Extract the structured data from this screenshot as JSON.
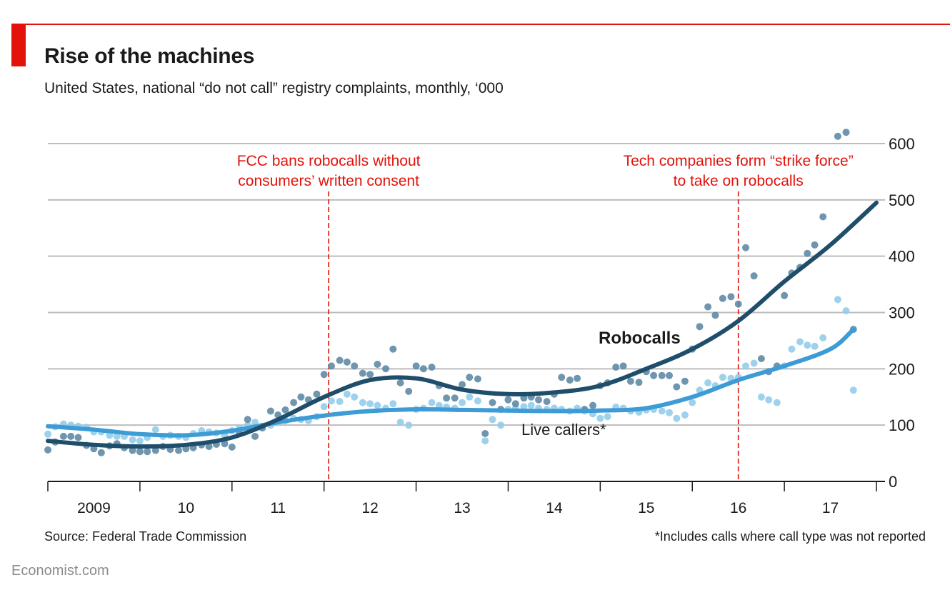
{
  "header": {
    "title": "Rise of the machines",
    "subtitle": "United States, national “do not call” registry complaints, monthly, ‘000"
  },
  "footer": {
    "source": "Source: Federal Trade Commission",
    "footnote": "*Includes calls where call type was not reported",
    "brand": "Economist.com"
  },
  "colors": {
    "accent": "#e3120b",
    "robocalls": "#1f4e6b",
    "robocalls_dots": "#5f8aa6",
    "live": "#3d9bd6",
    "live_dots": "#93cdea",
    "grid": "#bcbcbc",
    "axis": "#1a1a1a",
    "annotation": "#e3120b"
  },
  "chart_data": {
    "type": "line",
    "title": "Rise of the machines",
    "subtitle": "United States, national “do not call” registry complaints, monthly, ‘000",
    "xlim": [
      2009.0,
      2018.0
    ],
    "ylim": [
      0,
      600
    ],
    "y_ticks": [
      0,
      100,
      200,
      300,
      400,
      500,
      600
    ],
    "y_axis_side": "right",
    "x_ticks": [
      2009,
      2010,
      2011,
      2012,
      2013,
      2014,
      2015,
      2016,
      2017,
      2018
    ],
    "x_tick_labels": [
      {
        "x": 2009.5,
        "label": "2009"
      },
      {
        "x": 2010.5,
        "label": "10"
      },
      {
        "x": 2011.5,
        "label": "11"
      },
      {
        "x": 2012.5,
        "label": "12"
      },
      {
        "x": 2013.5,
        "label": "13"
      },
      {
        "x": 2014.5,
        "label": "14"
      },
      {
        "x": 2015.5,
        "label": "15"
      },
      {
        "x": 2016.5,
        "label": "16"
      },
      {
        "x": 2017.5,
        "label": "17"
      }
    ],
    "grid": true,
    "annotations": [
      {
        "x": 2012.05,
        "lines": [
          "FCC bans robocalls without",
          "consumers’ written consent"
        ]
      },
      {
        "x": 2016.5,
        "lines": [
          "Tech companies form “strike force”",
          "to take on robocalls"
        ]
      }
    ],
    "series": [
      {
        "name": "Robocalls",
        "label": "Robocalls",
        "trend": [
          [
            2009.0,
            72
          ],
          [
            2009.5,
            65
          ],
          [
            2010.0,
            62
          ],
          [
            2010.5,
            65
          ],
          [
            2011.0,
            78
          ],
          [
            2011.5,
            110
          ],
          [
            2012.0,
            150
          ],
          [
            2012.5,
            180
          ],
          [
            2013.0,
            183
          ],
          [
            2013.5,
            163
          ],
          [
            2014.0,
            155
          ],
          [
            2014.5,
            158
          ],
          [
            2015.0,
            170
          ],
          [
            2015.5,
            200
          ],
          [
            2016.0,
            235
          ],
          [
            2016.5,
            285
          ],
          [
            2017.0,
            355
          ],
          [
            2017.5,
            420
          ],
          [
            2018.0,
            495
          ]
        ],
        "points": [
          [
            2009.0,
            56
          ],
          [
            2009.08,
            70
          ],
          [
            2009.17,
            80
          ],
          [
            2009.25,
            80
          ],
          [
            2009.33,
            78
          ],
          [
            2009.42,
            64
          ],
          [
            2009.5,
            58
          ],
          [
            2009.58,
            51
          ],
          [
            2009.67,
            63
          ],
          [
            2009.75,
            67
          ],
          [
            2009.83,
            60
          ],
          [
            2009.92,
            55
          ],
          [
            2010.0,
            53
          ],
          [
            2010.08,
            53
          ],
          [
            2010.17,
            55
          ],
          [
            2010.25,
            62
          ],
          [
            2010.33,
            57
          ],
          [
            2010.42,
            55
          ],
          [
            2010.5,
            58
          ],
          [
            2010.58,
            60
          ],
          [
            2010.67,
            65
          ],
          [
            2010.75,
            62
          ],
          [
            2010.83,
            66
          ],
          [
            2010.92,
            67
          ],
          [
            2011.0,
            61
          ],
          [
            2011.08,
            85
          ],
          [
            2011.17,
            110
          ],
          [
            2011.25,
            80
          ],
          [
            2011.33,
            95
          ],
          [
            2011.42,
            125
          ],
          [
            2011.5,
            118
          ],
          [
            2011.58,
            127
          ],
          [
            2011.67,
            140
          ],
          [
            2011.75,
            150
          ],
          [
            2011.83,
            145
          ],
          [
            2011.92,
            155
          ],
          [
            2012.0,
            190
          ],
          [
            2012.08,
            205
          ],
          [
            2012.17,
            215
          ],
          [
            2012.25,
            212
          ],
          [
            2012.33,
            205
          ],
          [
            2012.42,
            192
          ],
          [
            2012.5,
            190
          ],
          [
            2012.58,
            208
          ],
          [
            2012.67,
            200
          ],
          [
            2012.75,
            235
          ],
          [
            2012.83,
            175
          ],
          [
            2012.92,
            160
          ],
          [
            2013.0,
            205
          ],
          [
            2013.08,
            200
          ],
          [
            2013.17,
            203
          ],
          [
            2013.25,
            170
          ],
          [
            2013.33,
            148
          ],
          [
            2013.42,
            148
          ],
          [
            2013.5,
            172
          ],
          [
            2013.58,
            185
          ],
          [
            2013.67,
            182
          ],
          [
            2013.75,
            85
          ],
          [
            2013.83,
            140
          ],
          [
            2013.92,
            128
          ],
          [
            2014.0,
            145
          ],
          [
            2014.08,
            138
          ],
          [
            2014.17,
            148
          ],
          [
            2014.25,
            150
          ],
          [
            2014.33,
            145
          ],
          [
            2014.42,
            142
          ],
          [
            2014.5,
            155
          ],
          [
            2014.58,
            185
          ],
          [
            2014.67,
            180
          ],
          [
            2014.75,
            183
          ],
          [
            2014.83,
            128
          ],
          [
            2014.92,
            135
          ],
          [
            2015.0,
            170
          ],
          [
            2015.08,
            175
          ],
          [
            2015.17,
            203
          ],
          [
            2015.25,
            205
          ],
          [
            2015.33,
            178
          ],
          [
            2015.42,
            176
          ],
          [
            2015.5,
            195
          ],
          [
            2015.58,
            188
          ],
          [
            2015.67,
            188
          ],
          [
            2015.75,
            188
          ],
          [
            2015.83,
            168
          ],
          [
            2015.92,
            178
          ],
          [
            2016.0,
            235
          ],
          [
            2016.08,
            275
          ],
          [
            2016.17,
            310
          ],
          [
            2016.25,
            295
          ],
          [
            2016.33,
            325
          ],
          [
            2016.42,
            328
          ],
          [
            2016.5,
            315
          ],
          [
            2016.58,
            415
          ],
          [
            2016.67,
            365
          ],
          [
            2016.75,
            218
          ],
          [
            2016.83,
            195
          ],
          [
            2016.92,
            205
          ],
          [
            2017.0,
            330
          ],
          [
            2017.08,
            370
          ],
          [
            2017.17,
            380
          ],
          [
            2017.25,
            405
          ],
          [
            2017.33,
            420
          ],
          [
            2017.42,
            470
          ],
          [
            2017.58,
            613
          ],
          [
            2017.67,
            620
          ],
          [
            2017.75,
            270
          ]
        ]
      },
      {
        "name": "Live callers*",
        "label": "Live callers*",
        "trend": [
          [
            2009.0,
            98
          ],
          [
            2009.5,
            92
          ],
          [
            2010.0,
            84
          ],
          [
            2010.5,
            82
          ],
          [
            2011.0,
            90
          ],
          [
            2011.5,
            105
          ],
          [
            2012.0,
            117
          ],
          [
            2012.5,
            125
          ],
          [
            2013.0,
            128
          ],
          [
            2013.5,
            127
          ],
          [
            2014.0,
            126
          ],
          [
            2014.5,
            125
          ],
          [
            2015.0,
            126
          ],
          [
            2015.5,
            130
          ],
          [
            2016.0,
            150
          ],
          [
            2016.5,
            180
          ],
          [
            2017.0,
            205
          ],
          [
            2017.5,
            235
          ],
          [
            2017.75,
            270
          ]
        ],
        "points": [
          [
            2009.0,
            84
          ],
          [
            2009.08,
            97
          ],
          [
            2009.17,
            102
          ],
          [
            2009.25,
            100
          ],
          [
            2009.33,
            98
          ],
          [
            2009.42,
            96
          ],
          [
            2009.5,
            88
          ],
          [
            2009.58,
            88
          ],
          [
            2009.67,
            82
          ],
          [
            2009.75,
            80
          ],
          [
            2009.83,
            80
          ],
          [
            2009.92,
            74
          ],
          [
            2010.0,
            72
          ],
          [
            2010.08,
            78
          ],
          [
            2010.17,
            92
          ],
          [
            2010.25,
            80
          ],
          [
            2010.33,
            82
          ],
          [
            2010.42,
            80
          ],
          [
            2010.5,
            78
          ],
          [
            2010.58,
            85
          ],
          [
            2010.67,
            90
          ],
          [
            2010.75,
            88
          ],
          [
            2010.83,
            86
          ],
          [
            2010.92,
            82
          ],
          [
            2011.0,
            90
          ],
          [
            2011.08,
            95
          ],
          [
            2011.17,
            100
          ],
          [
            2011.25,
            105
          ],
          [
            2011.33,
            98
          ],
          [
            2011.42,
            100
          ],
          [
            2011.5,
            105
          ],
          [
            2011.58,
            108
          ],
          [
            2011.67,
            112
          ],
          [
            2011.75,
            110
          ],
          [
            2011.83,
            108
          ],
          [
            2011.92,
            115
          ],
          [
            2012.0,
            133
          ],
          [
            2012.08,
            143
          ],
          [
            2012.17,
            142
          ],
          [
            2012.25,
            155
          ],
          [
            2012.33,
            150
          ],
          [
            2012.42,
            140
          ],
          [
            2012.5,
            138
          ],
          [
            2012.58,
            135
          ],
          [
            2012.67,
            130
          ],
          [
            2012.75,
            138
          ],
          [
            2012.83,
            105
          ],
          [
            2012.92,
            100
          ],
          [
            2013.0,
            128
          ],
          [
            2013.08,
            130
          ],
          [
            2013.17,
            140
          ],
          [
            2013.25,
            135
          ],
          [
            2013.33,
            132
          ],
          [
            2013.42,
            130
          ],
          [
            2013.5,
            140
          ],
          [
            2013.58,
            150
          ],
          [
            2013.67,
            143
          ],
          [
            2013.75,
            72
          ],
          [
            2013.83,
            110
          ],
          [
            2013.92,
            100
          ],
          [
            2014.0,
            128
          ],
          [
            2014.08,
            130
          ],
          [
            2014.17,
            133
          ],
          [
            2014.25,
            135
          ],
          [
            2014.33,
            130
          ],
          [
            2014.42,
            128
          ],
          [
            2014.5,
            130
          ],
          [
            2014.58,
            128
          ],
          [
            2014.67,
            125
          ],
          [
            2014.75,
            130
          ],
          [
            2014.83,
            125
          ],
          [
            2014.92,
            120
          ],
          [
            2015.0,
            112
          ],
          [
            2015.08,
            115
          ],
          [
            2015.17,
            132
          ],
          [
            2015.25,
            130
          ],
          [
            2015.33,
            125
          ],
          [
            2015.42,
            123
          ],
          [
            2015.5,
            127
          ],
          [
            2015.58,
            128
          ],
          [
            2015.67,
            125
          ],
          [
            2015.75,
            122
          ],
          [
            2015.83,
            112
          ],
          [
            2015.92,
            118
          ],
          [
            2016.0,
            140
          ],
          [
            2016.08,
            162
          ],
          [
            2016.17,
            175
          ],
          [
            2016.25,
            170
          ],
          [
            2016.33,
            185
          ],
          [
            2016.42,
            183
          ],
          [
            2016.5,
            185
          ],
          [
            2016.58,
            205
          ],
          [
            2016.67,
            210
          ],
          [
            2016.75,
            150
          ],
          [
            2016.83,
            145
          ],
          [
            2016.92,
            140
          ],
          [
            2017.0,
            205
          ],
          [
            2017.08,
            235
          ],
          [
            2017.17,
            248
          ],
          [
            2017.25,
            242
          ],
          [
            2017.33,
            240
          ],
          [
            2017.42,
            255
          ],
          [
            2017.58,
            323
          ],
          [
            2017.67,
            303
          ],
          [
            2017.75,
            162
          ]
        ]
      }
    ]
  }
}
